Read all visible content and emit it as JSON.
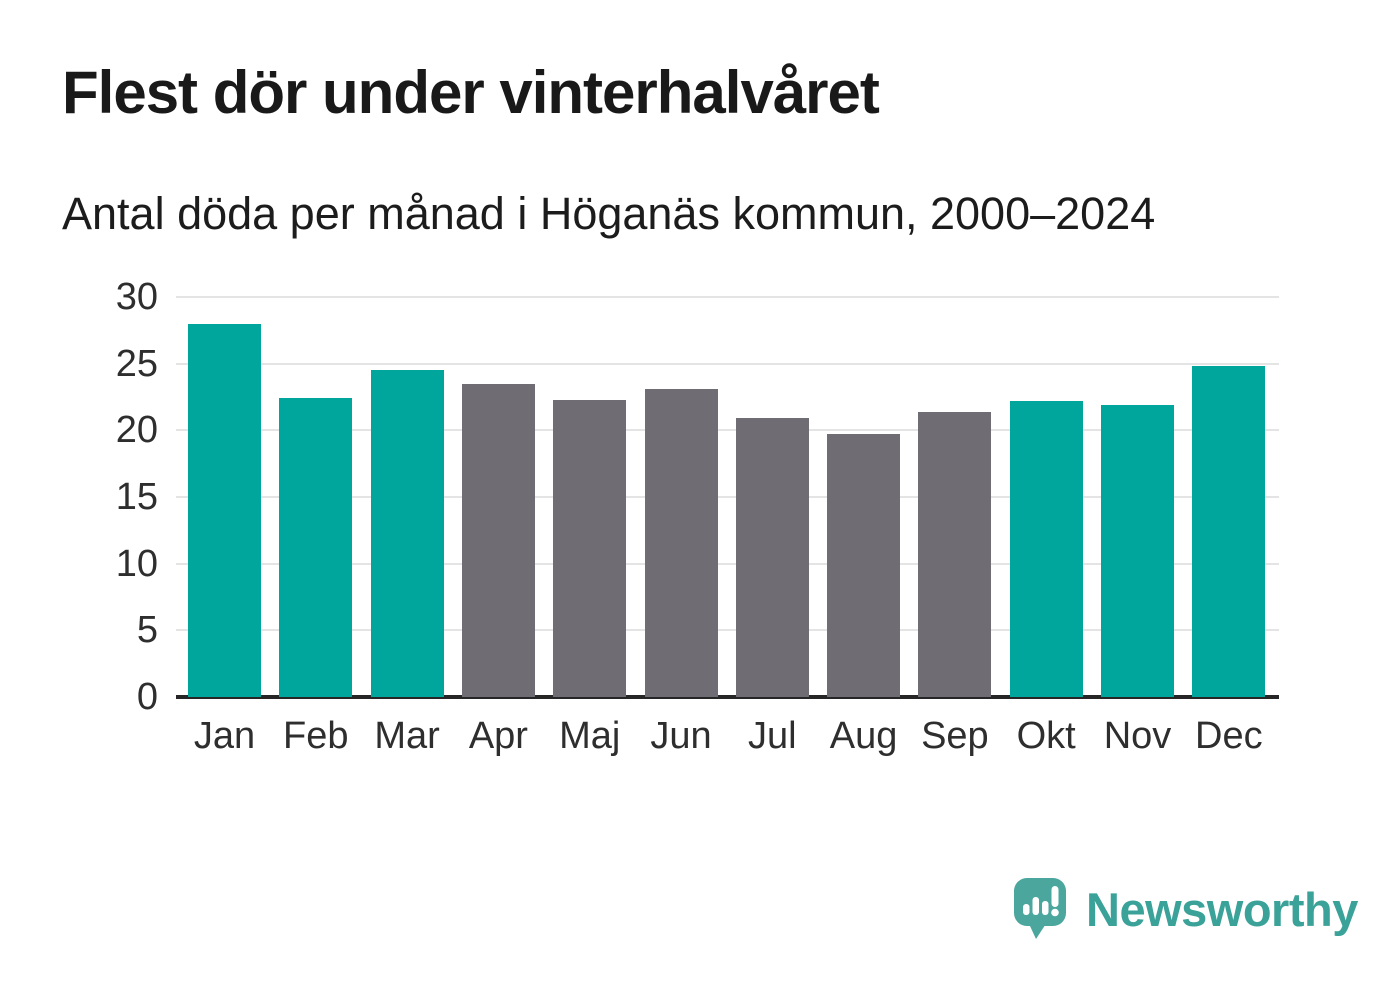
{
  "header": {
    "title": "Flest dör under vinterhalvåret",
    "subtitle": "Antal döda per månad i Höganäs kommun, 2000–2024"
  },
  "chart_data": {
    "type": "bar",
    "categories": [
      "Jan",
      "Feb",
      "Mar",
      "Apr",
      "Maj",
      "Jun",
      "Jul",
      "Aug",
      "Sep",
      "Okt",
      "Nov",
      "Dec"
    ],
    "values": [
      28.0,
      22.4,
      24.5,
      23.5,
      22.3,
      23.1,
      20.9,
      19.7,
      21.4,
      22.2,
      21.9,
      24.8
    ],
    "bar_groups": [
      "winter",
      "winter",
      "winter",
      "summer",
      "summer",
      "summer",
      "summer",
      "summer",
      "summer",
      "winter",
      "winter",
      "winter"
    ],
    "title": "Flest dör under vinterhalvåret",
    "subtitle": "Antal döda per månad i Höganäs kommun, 2000–2024",
    "xlabel": "",
    "ylabel": "",
    "ylim": [
      0,
      30
    ],
    "yticks": [
      0,
      5,
      10,
      15,
      20,
      25,
      30
    ],
    "grid": true,
    "legend_position": "none",
    "colors": {
      "winter_bar": "#00a59c",
      "summer_bar": "#6f6c73",
      "gridline": "#e4e4e4",
      "axis": "#262626",
      "tick_text": "#2e2e2e"
    }
  },
  "footer": {
    "brand": "Newsworthy",
    "logo_icon": "newsworthy-speech-bubble-bar-chart-icon",
    "brand_color": "#3aa298",
    "logo_color": "#4ba69e"
  }
}
